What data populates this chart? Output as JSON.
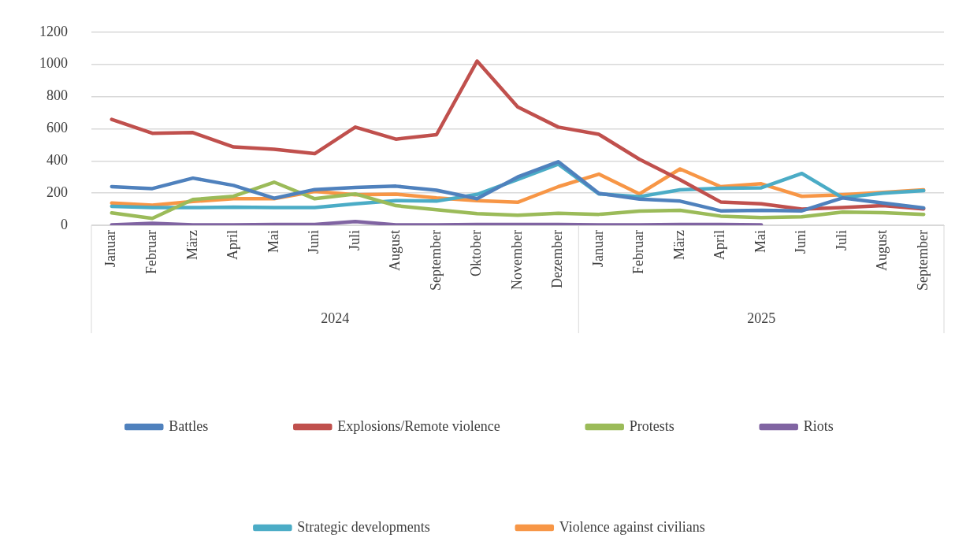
{
  "chart_data": {
    "type": "line",
    "categories": [
      "Januar",
      "Februar",
      "März",
      "April",
      "Mai",
      "Juni",
      "Juli",
      "August",
      "September",
      "Oktober",
      "November",
      "Dezember",
      "Januar",
      "Februar",
      "März",
      "April",
      "Mai",
      "Juni",
      "Juli",
      "August",
      "September"
    ],
    "annotations": [
      "2024",
      "2025"
    ],
    "series": [
      {
        "name": "Battles",
        "color": "#4f81bd",
        "values": [
          240,
          228,
          293,
          248,
          168,
          222,
          235,
          243,
          218,
          165,
          300,
          395,
          198,
          163,
          150,
          90,
          93,
          90,
          170,
          138,
          108
        ]
      },
      {
        "name": "Explosions/Remote violence",
        "color": "#c0504d",
        "values": [
          658,
          572,
          576,
          487,
          472,
          445,
          610,
          535,
          563,
          1020,
          735,
          610,
          565,
          410,
          283,
          145,
          133,
          100,
          110,
          122,
          102
        ]
      },
      {
        "name": "Protests",
        "color": "#9bbb59",
        "values": [
          77,
          43,
          160,
          180,
          268,
          165,
          195,
          122,
          97,
          72,
          63,
          75,
          68,
          88,
          93,
          57,
          48,
          53,
          82,
          78,
          68
        ]
      },
      {
        "name": "Riots",
        "color": "#8064a2",
        "values": [
          3,
          12,
          3,
          3,
          5,
          5,
          23,
          3,
          3,
          5,
          5,
          5,
          3,
          3,
          5,
          5,
          3,
          null,
          null,
          null,
          null
        ]
      },
      {
        "name": "Strategic developments",
        "color": "#4bacc6",
        "values": [
          118,
          110,
          110,
          113,
          110,
          110,
          133,
          153,
          150,
          192,
          285,
          380,
          195,
          178,
          220,
          230,
          233,
          322,
          172,
          200,
          215
        ]
      },
      {
        "name": "Violence against civilians",
        "color": "#f79646",
        "values": [
          138,
          125,
          148,
          165,
          165,
          210,
          190,
          193,
          170,
          153,
          143,
          240,
          318,
          195,
          350,
          240,
          258,
          180,
          190,
          205,
          220
        ]
      }
    ],
    "ylim": [
      0,
      1200
    ],
    "yticks": [
      0,
      200,
      400,
      600,
      800,
      1000,
      1200
    ],
    "grid": "y",
    "legend": "bottom",
    "marker": "none",
    "line_style": "solid"
  }
}
